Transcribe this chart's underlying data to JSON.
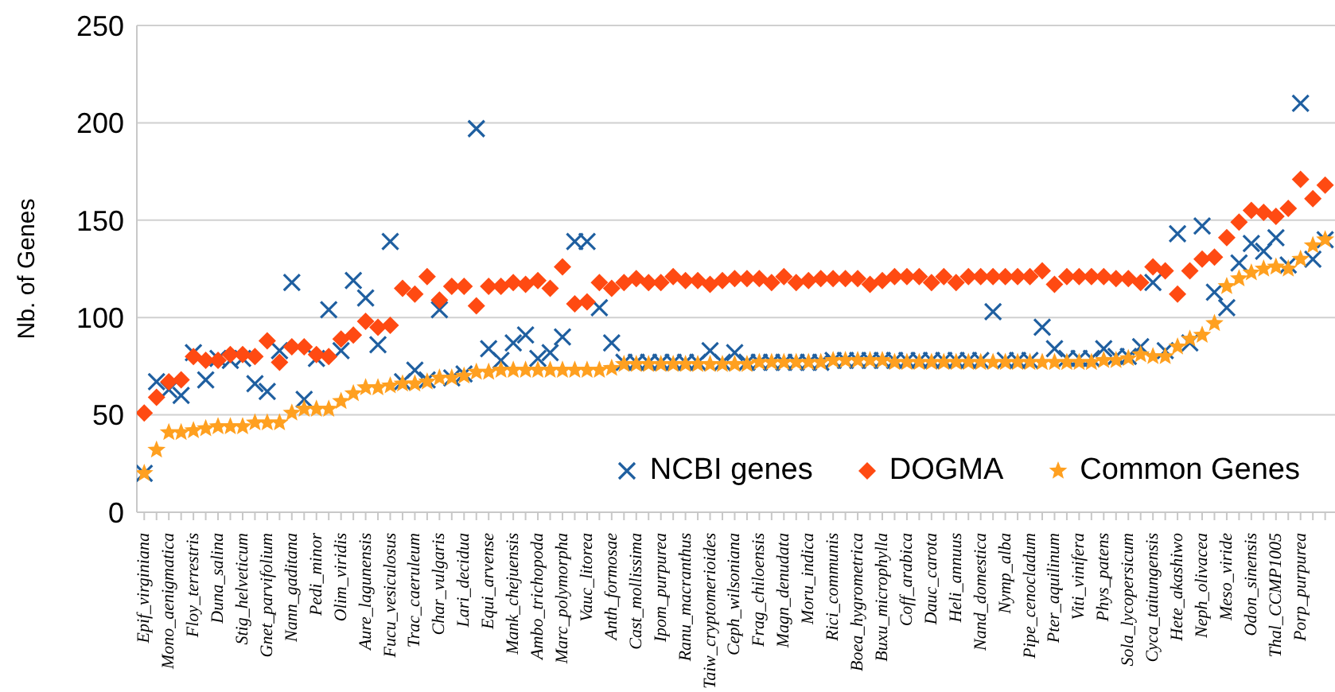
{
  "chart_data": {
    "type": "scatter",
    "ylabel": "Nb. of Genes",
    "categories": [
      "Epif_virginiana",
      null,
      "Mono_aenigmatica",
      null,
      "Floy_terrestris",
      null,
      "Duna_salina",
      null,
      "Stig_helveticum",
      null,
      "Gnet_parvifolium",
      null,
      "Nann_gaditana",
      null,
      "Pedi_minor",
      null,
      "Olim_viridis",
      null,
      "Aure_lagunensis",
      null,
      "Fucu_vesiculosus",
      null,
      "Trac_caeruleum",
      null,
      "Char_vulgaris",
      null,
      "Lari_decidua",
      null,
      "Equi_arvense",
      null,
      "Mank_chejuensis",
      null,
      "Ambo_trichopoda",
      null,
      "Marc_polymorpha",
      null,
      "Vauc_litorea",
      null,
      "Anth_formosae",
      null,
      "Cast_mollissima",
      null,
      "Ipom_purpurea",
      null,
      "Ranu_macranthus",
      null,
      "Taiw_cryptomerioides",
      null,
      "Ceph_wilsoniana",
      null,
      "Frag_chiloensis",
      null,
      "Magn_denudata",
      null,
      "Moru_indica",
      null,
      "Rici_communis",
      null,
      "Boea_hygrometrica",
      null,
      "Buxu_microphylla",
      null,
      "Coff_arabica",
      null,
      "Dauc_carota",
      null,
      "Heli_annuus",
      null,
      "Nand_domestica",
      null,
      "Nymp_alba",
      null,
      "Pipe_cenocladum",
      null,
      "Pter_aquilinum",
      null,
      "Viti_vinifera",
      null,
      "Phys_patens",
      null,
      "Sola_lycopersicum",
      null,
      "Cyca_taitungensis",
      null,
      "Hete_akashiwo",
      null,
      "Neph_olivacea",
      null,
      "Meso_viride",
      null,
      "Odon_sinensis",
      null,
      "Thal_CCMP1005",
      null,
      "Porp_purpurea",
      null,
      null
    ],
    "series": [
      {
        "name": "NCBI genes",
        "color": "#1f5fa0",
        "marker": "cross",
        "values": [
          20,
          67,
          63,
          60,
          82,
          68,
          79,
          78,
          79,
          66,
          62,
          83,
          118,
          58,
          79,
          104,
          83,
          119,
          110,
          86,
          139,
          67,
          73,
          68,
          104,
          69,
          71,
          197,
          84,
          78,
          87,
          91,
          79,
          82,
          90,
          139,
          139,
          105,
          87,
          77,
          77,
          77,
          77,
          77,
          77,
          77,
          83,
          77,
          82,
          77,
          77,
          77,
          77,
          77,
          77,
          77,
          78,
          78,
          78,
          78,
          78,
          78,
          78,
          78,
          78,
          78,
          78,
          78,
          78,
          103,
          78,
          78,
          78,
          95,
          84,
          79,
          79,
          79,
          84,
          80,
          80,
          85,
          118,
          83,
          143,
          87,
          147,
          113,
          105,
          128,
          138,
          134,
          141,
          127,
          210,
          130,
          140
        ]
      },
      {
        "name": "DOGMA",
        "color": "#ff4a12",
        "marker": "diamond",
        "values": [
          51,
          59,
          67,
          68,
          80,
          78,
          78,
          81,
          81,
          80,
          88,
          77,
          85,
          85,
          81,
          80,
          89,
          91,
          98,
          95,
          96,
          115,
          112,
          121,
          109,
          116,
          116,
          106,
          116,
          116,
          118,
          117,
          119,
          115,
          126,
          107,
          108,
          118,
          115,
          118,
          120,
          118,
          118,
          121,
          119,
          119,
          117,
          119,
          120,
          120,
          120,
          118,
          121,
          118,
          119,
          120,
          120,
          120,
          120,
          117,
          119,
          121,
          121,
          121,
          118,
          121,
          118,
          121,
          121,
          121,
          121,
          121,
          121,
          124,
          117,
          121,
          121,
          121,
          121,
          120,
          120,
          118,
          126,
          124,
          112,
          124,
          130,
          131,
          141,
          149,
          155,
          154,
          152,
          156,
          171,
          161,
          168
        ]
      },
      {
        "name": "Common Genes",
        "color": "#ffa020",
        "marker": "star",
        "values": [
          20,
          32,
          41,
          41,
          42,
          43,
          44,
          44,
          44,
          46,
          46,
          46,
          51,
          53,
          53,
          53,
          57,
          61,
          64,
          64,
          65,
          66,
          66,
          67,
          69,
          69,
          70,
          72,
          72,
          73,
          73,
          73,
          73,
          73,
          73,
          73,
          73,
          73,
          74,
          76,
          76,
          76,
          76,
          76,
          76,
          76,
          76,
          76,
          76,
          76,
          77,
          77,
          77,
          77,
          77,
          77,
          78,
          78,
          78,
          78,
          78,
          77,
          77,
          77,
          77,
          77,
          77,
          77,
          77,
          77,
          77,
          77,
          77,
          77,
          77,
          77,
          77,
          77,
          78,
          78,
          79,
          81,
          80,
          80,
          85,
          89,
          91,
          97,
          116,
          120,
          123,
          125,
          126,
          125,
          130,
          137,
          140
        ]
      }
    ],
    "ylim": [
      0,
      250
    ],
    "yticks": [
      0,
      50,
      100,
      150,
      200,
      250
    ],
    "grid": "y",
    "legend": "bottom right"
  }
}
